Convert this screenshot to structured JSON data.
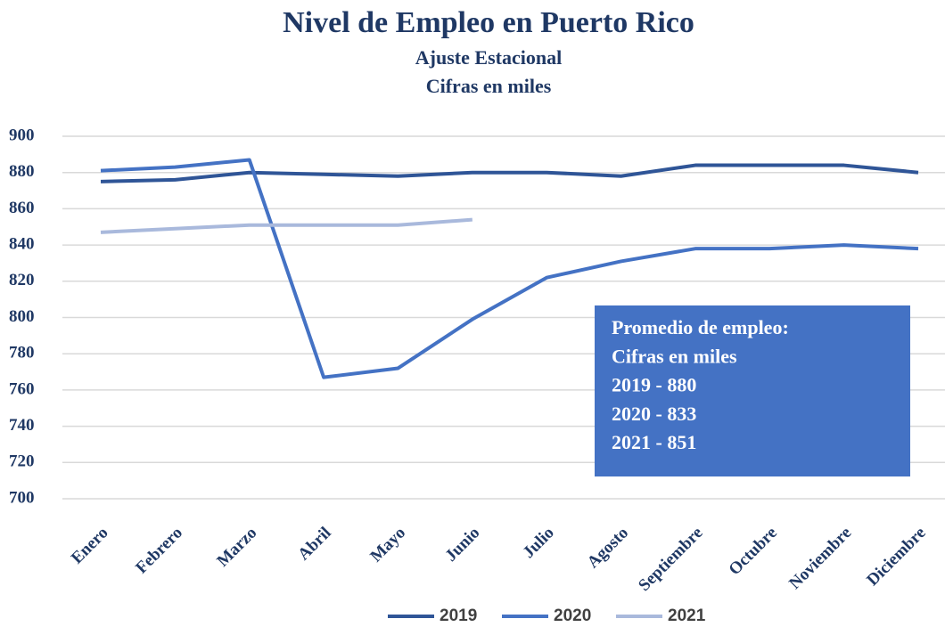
{
  "chart_data": {
    "type": "line",
    "title": "Nivel de Empleo en Puerto Rico",
    "subtitle": [
      "Ajuste Estacional",
      "Cifras en miles"
    ],
    "categories": [
      "Enero",
      "Febrero",
      "Marzo",
      "Abril",
      "Mayo",
      "Junio",
      "Julio",
      "Agosto",
      "Septiembre",
      "Octubre",
      "Noviembre",
      "Diciembre"
    ],
    "series": [
      {
        "name": "2019",
        "color": "#2f5597",
        "values": [
          875,
          876,
          880,
          879,
          878,
          880,
          880,
          878,
          884,
          884,
          884,
          880
        ]
      },
      {
        "name": "2020",
        "color": "#4472c4",
        "values": [
          881,
          883,
          887,
          767,
          772,
          799,
          822,
          831,
          838,
          838,
          840,
          838
        ]
      },
      {
        "name": "2021",
        "color": "#a9b9dc",
        "values": [
          847,
          849,
          851,
          851,
          851,
          854,
          null,
          null,
          null,
          null,
          null,
          null
        ]
      }
    ],
    "ylim": [
      700,
      900
    ],
    "yticks": [
      700,
      720,
      740,
      760,
      780,
      800,
      820,
      840,
      860,
      880,
      900
    ],
    "grid": true,
    "legend": "bottom",
    "annotation": [
      "Promedio de empleo:",
      "Cifras en miles",
      "2019 - 880",
      "2020 - 833",
      "2021 - 851"
    ],
    "annotation_color": "#4472c4"
  }
}
